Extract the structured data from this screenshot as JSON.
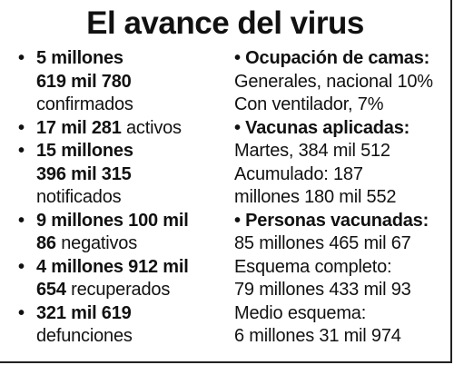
{
  "title": "El avance del virus",
  "left_items": [
    {
      "line1": "5 millones",
      "line2": "619 mil 780",
      "line3": "confirmados"
    },
    {
      "bold": "17 mil 281",
      "label": "activos"
    },
    {
      "line1": "15 millones",
      "line2": "396 mil 315",
      "line3": "notificados"
    },
    {
      "line1": "9 millones 100 mil",
      "bold2": "86",
      "label2": "negativos"
    },
    {
      "line1": "4 millones 912 mil",
      "bold2": "654",
      "label2": "recuperados"
    },
    {
      "line1": "321 mil 619",
      "line2": "defunciones"
    }
  ],
  "right": {
    "beds_heading": "Ocupación de camas:",
    "beds_line1": "Generales, nacional 10%",
    "beds_line2": "Con ventilador, 7%",
    "vaccines_heading": "Vacunas aplicadas:",
    "vaccines_line1": "Martes, 384 mil 512",
    "vaccines_line2": "Acumulado: 187",
    "vaccines_line3": "millones 180 mil 552",
    "people_heading": "Personas vacunadas:",
    "people_line1": "85 millones 465 mil 67",
    "people_line2": "Esquema completo:",
    "people_line3": "79 millones 433 mil 93",
    "people_line4": "Medio esquema:",
    "people_line5": "6 millones 31 mil 974"
  },
  "bullet": "•"
}
